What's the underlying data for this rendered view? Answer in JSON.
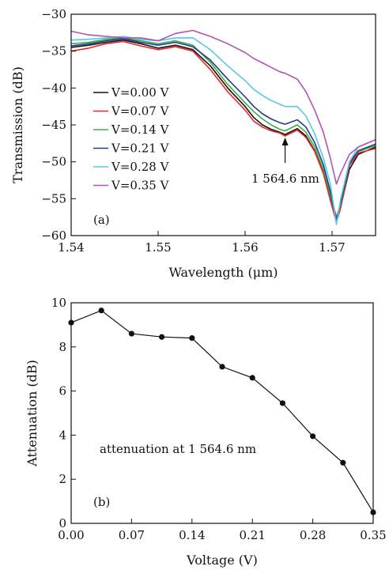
{
  "chart_data": [
    {
      "type": "line",
      "panel_label": "(a)",
      "xlabel": "Wavelength (μm)",
      "ylabel": "Transmission (dB)",
      "xlim": [
        1.54,
        1.575
      ],
      "ylim": [
        -60,
        -30
      ],
      "xticks": [
        1.54,
        1.55,
        1.56,
        1.57
      ],
      "xtick_labels": [
        "1.54",
        "1.55",
        "1.56",
        "1.57"
      ],
      "yticks": [
        -30,
        -35,
        -40,
        -45,
        -50,
        -55,
        -60
      ],
      "ytick_labels": [
        "−30",
        "−35",
        "−40",
        "−45",
        "−50",
        "−55",
        "−60"
      ],
      "legend_position": "center-left",
      "annotation": {
        "text": "1 564.6 nm",
        "x": 1.5646,
        "y": -46.5
      },
      "series": [
        {
          "name": "V=0.00 V",
          "color": "#111111",
          "x": [
            1.54,
            1.542,
            1.544,
            1.546,
            1.548,
            1.55,
            1.552,
            1.554,
            1.556,
            1.558,
            1.56,
            1.561,
            1.562,
            1.563,
            1.564,
            1.5646,
            1.566,
            1.567,
            1.568,
            1.569,
            1.5698,
            1.5705,
            1.571,
            1.572,
            1.573,
            1.575
          ],
          "y": [
            -34.5,
            -34.2,
            -33.8,
            -33.5,
            -34.0,
            -34.6,
            -34.2,
            -34.8,
            -37.0,
            -40.0,
            -42.5,
            -44.0,
            -45.0,
            -45.6,
            -46.0,
            -46.3,
            -45.5,
            -46.5,
            -48.5,
            -51.5,
            -55.0,
            -58.0,
            -56.0,
            -51.0,
            -49.0,
            -48.0
          ]
        },
        {
          "name": "V=0.07 V",
          "color": "#e8262a",
          "x": [
            1.54,
            1.542,
            1.544,
            1.546,
            1.548,
            1.55,
            1.552,
            1.554,
            1.556,
            1.558,
            1.56,
            1.561,
            1.562,
            1.563,
            1.564,
            1.5646,
            1.566,
            1.567,
            1.568,
            1.569,
            1.5698,
            1.5705,
            1.571,
            1.572,
            1.573,
            1.575
          ],
          "y": [
            -35.0,
            -34.6,
            -34.0,
            -33.7,
            -34.3,
            -34.8,
            -34.4,
            -35.0,
            -37.5,
            -40.5,
            -43.0,
            -44.5,
            -45.3,
            -45.8,
            -46.1,
            -46.5,
            -45.7,
            -46.7,
            -48.6,
            -51.6,
            -55.2,
            -58.2,
            -56.2,
            -50.5,
            -48.8,
            -48.2
          ]
        },
        {
          "name": "V=0.14 V",
          "color": "#3fae3f",
          "x": [
            1.54,
            1.542,
            1.544,
            1.546,
            1.548,
            1.55,
            1.552,
            1.554,
            1.556,
            1.558,
            1.56,
            1.561,
            1.562,
            1.563,
            1.564,
            1.5646,
            1.566,
            1.567,
            1.568,
            1.569,
            1.5698,
            1.5705,
            1.571,
            1.572,
            1.573,
            1.575
          ],
          "y": [
            -34.0,
            -33.8,
            -33.4,
            -33.2,
            -33.6,
            -34.0,
            -33.6,
            -34.2,
            -36.5,
            -39.5,
            -42.0,
            -43.2,
            -44.2,
            -45.0,
            -45.6,
            -45.8,
            -45.0,
            -46.0,
            -48.0,
            -51.0,
            -54.5,
            -57.5,
            -55.8,
            -50.0,
            -48.6,
            -47.8
          ]
        },
        {
          "name": "V=0.21 V",
          "color": "#1f3c8f",
          "x": [
            1.54,
            1.542,
            1.544,
            1.546,
            1.548,
            1.55,
            1.552,
            1.554,
            1.556,
            1.558,
            1.56,
            1.561,
            1.562,
            1.563,
            1.564,
            1.5646,
            1.566,
            1.567,
            1.568,
            1.569,
            1.5698,
            1.5705,
            1.571,
            1.572,
            1.573,
            1.575
          ],
          "y": [
            -34.3,
            -34.0,
            -33.6,
            -33.3,
            -33.8,
            -34.2,
            -33.8,
            -34.4,
            -36.2,
            -38.8,
            -41.2,
            -42.5,
            -43.5,
            -44.2,
            -44.7,
            -44.9,
            -44.3,
            -45.3,
            -47.4,
            -50.4,
            -54.0,
            -57.8,
            -55.5,
            -50.2,
            -48.5,
            -47.6
          ]
        },
        {
          "name": "V=0.28 V",
          "color": "#55c8e8",
          "x": [
            1.54,
            1.542,
            1.544,
            1.546,
            1.548,
            1.55,
            1.552,
            1.554,
            1.556,
            1.558,
            1.56,
            1.561,
            1.562,
            1.563,
            1.564,
            1.5646,
            1.566,
            1.567,
            1.568,
            1.569,
            1.5698,
            1.5705,
            1.571,
            1.572,
            1.573,
            1.575
          ],
          "y": [
            -33.5,
            -33.4,
            -33.2,
            -33.0,
            -33.4,
            -33.6,
            -33.2,
            -33.2,
            -34.8,
            -37.0,
            -39.0,
            -40.2,
            -41.0,
            -41.7,
            -42.2,
            -42.5,
            -42.5,
            -43.8,
            -46.2,
            -49.5,
            -53.0,
            -58.5,
            -55.0,
            -50.0,
            -48.0,
            -47.0
          ]
        },
        {
          "name": "V=0.35 V",
          "color": "#b352b3",
          "x": [
            1.54,
            1.542,
            1.544,
            1.546,
            1.548,
            1.55,
            1.552,
            1.554,
            1.556,
            1.558,
            1.56,
            1.561,
            1.562,
            1.563,
            1.564,
            1.5646,
            1.566,
            1.567,
            1.568,
            1.569,
            1.5698,
            1.5705,
            1.571,
            1.572,
            1.573,
            1.575
          ],
          "y": [
            -32.3,
            -32.8,
            -33.0,
            -33.2,
            -33.2,
            -33.6,
            -32.6,
            -32.2,
            -33.0,
            -34.0,
            -35.2,
            -36.0,
            -36.6,
            -37.2,
            -37.8,
            -38.0,
            -38.8,
            -40.5,
            -43.0,
            -46.0,
            -49.5,
            -53.0,
            -51.5,
            -49.0,
            -48.0,
            -47.0
          ]
        }
      ]
    },
    {
      "type": "line",
      "panel_label": "(b)",
      "xlabel": "Voltage (V)",
      "ylabel": "Attenuation (dB)",
      "xlim": [
        0,
        0.35
      ],
      "ylim": [
        0,
        10
      ],
      "xticks": [
        0,
        0.07,
        0.14,
        0.21,
        0.28,
        0.35
      ],
      "xtick_labels": [
        "0.00",
        "0.07",
        "0.14",
        "0.21",
        "0.28",
        "0.35"
      ],
      "yticks": [
        0,
        2,
        4,
        6,
        8,
        10
      ],
      "ytick_labels": [
        "0",
        "2",
        "4",
        "6",
        "8",
        "10"
      ],
      "annotation": {
        "text": "attenuation at 1 564.6 nm"
      },
      "series": [
        {
          "color": "#111111",
          "x": [
            0.0,
            0.035,
            0.07,
            0.105,
            0.14,
            0.175,
            0.21,
            0.245,
            0.28,
            0.315,
            0.35
          ],
          "y": [
            9.1,
            9.65,
            8.6,
            8.45,
            8.4,
            7.1,
            6.6,
            5.45,
            3.95,
            2.75,
            0.5
          ]
        }
      ]
    }
  ]
}
